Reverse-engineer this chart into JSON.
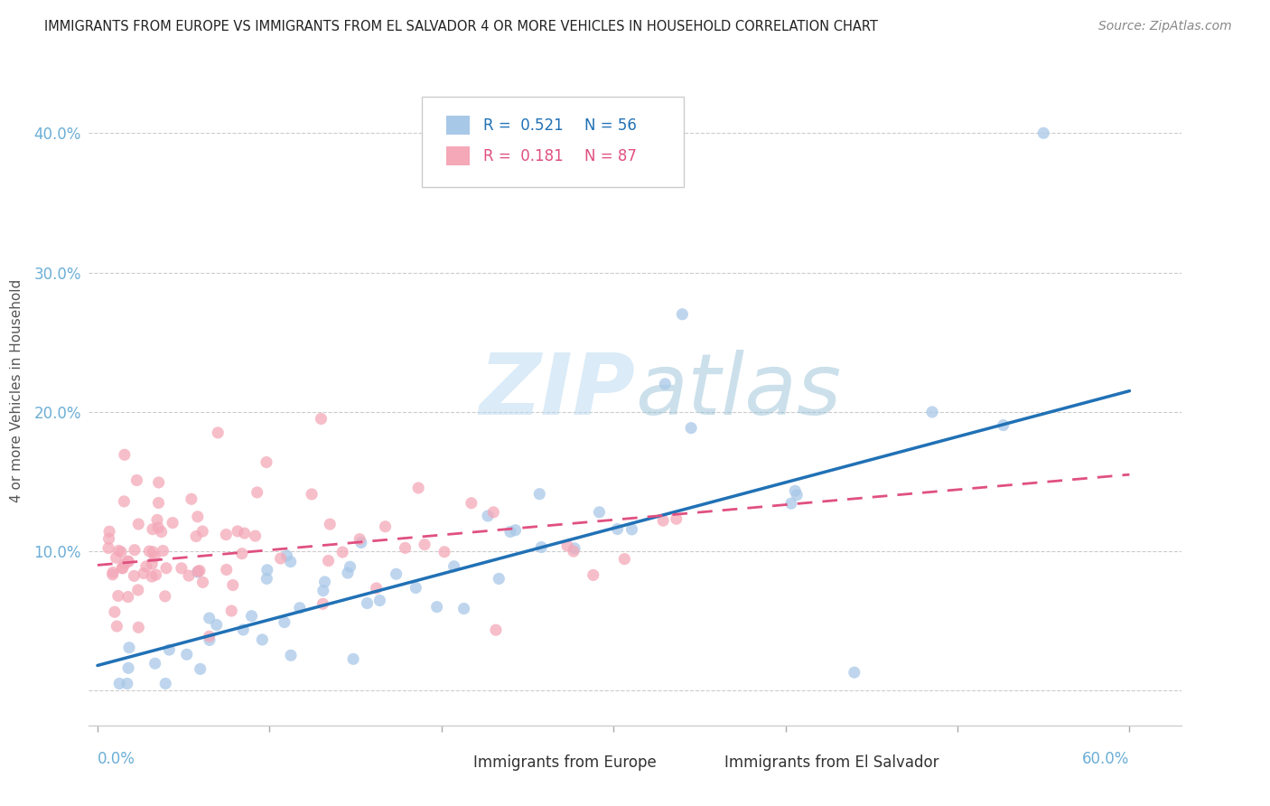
{
  "title": "IMMIGRANTS FROM EUROPE VS IMMIGRANTS FROM EL SALVADOR 4 OR MORE VEHICLES IN HOUSEHOLD CORRELATION CHART",
  "source": "Source: ZipAtlas.com",
  "ylabel": "4 or more Vehicles in Household",
  "ytick_values": [
    0.0,
    0.1,
    0.2,
    0.3,
    0.4
  ],
  "ytick_labels": [
    "",
    "10.0%",
    "20.0%",
    "30.0%",
    "40.0%"
  ],
  "xlim": [
    -0.005,
    0.63
  ],
  "ylim": [
    -0.025,
    0.455
  ],
  "blue_color": "#a8c8e8",
  "pink_color": "#f4a8b8",
  "blue_line_color": "#2171b5",
  "pink_line_color": "#e05080",
  "axis_tick_color": "#6baed6",
  "legend_R_blue": "0.521",
  "legend_N_blue": "56",
  "legend_R_pink": "0.181",
  "legend_N_pink": "87",
  "legend_label_blue": "Immigrants from Europe",
  "legend_label_pink": "Immigrants from El Salvador",
  "watermark": "ZIPatlas",
  "blue_line_x": [
    0.0,
    0.6
  ],
  "blue_line_y": [
    0.018,
    0.215
  ],
  "pink_line_x": [
    0.0,
    0.6
  ],
  "pink_line_y": [
    0.09,
    0.155
  ],
  "grid_color": "#cccccc",
  "background_color": "#ffffff",
  "xtick_positions": [
    0.0,
    0.1,
    0.2,
    0.3,
    0.4,
    0.5,
    0.6
  ]
}
